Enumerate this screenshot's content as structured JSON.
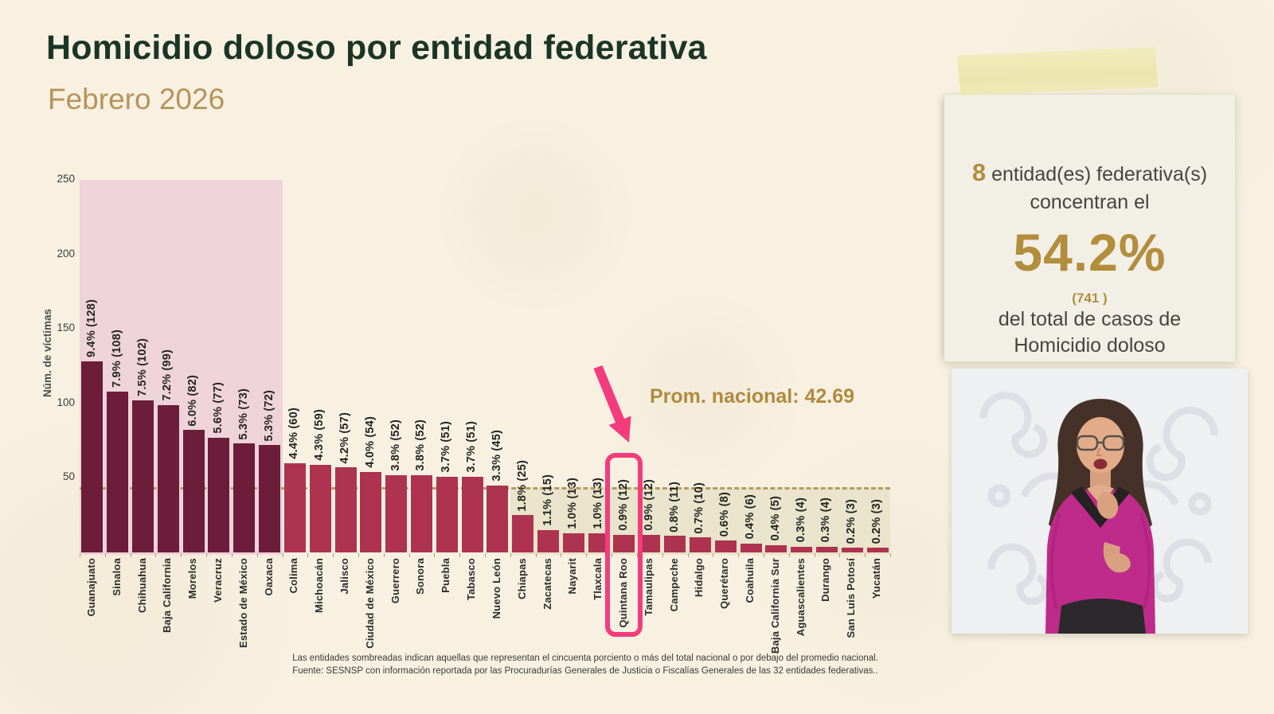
{
  "slide": {
    "title": "Homicidio doloso por entidad federativa",
    "subtitle": "Febrero 2026"
  },
  "chart_data": {
    "type": "bar",
    "title": "Homicidio doloso por entidad federativa — Febrero 2026",
    "xlabel": "",
    "ylabel": "Núm. de víctimas",
    "ylim": [
      0,
      250
    ],
    "yticks": [
      50,
      100,
      150,
      200,
      250
    ],
    "grid": false,
    "legend_position": "none",
    "categories": [
      "Guanajuato",
      "Sinaloa",
      "Chihuahua",
      "Baja California",
      "Morelos",
      "Veracruz",
      "Estado de México",
      "Oaxaca",
      "Colima",
      "Michoacán",
      "Jalisco",
      "Ciudad de México",
      "Guerrero",
      "Sonora",
      "Puebla",
      "Tabasco",
      "Nuevo León",
      "Chiapas",
      "Zacatecas",
      "Nayarit",
      "Tlaxcala",
      "Quintana Roo",
      "Tamaulipas",
      "Campeche",
      "Hidalgo",
      "Querétaro",
      "Coahuila",
      "Baja California Sur",
      "Aguascalientes",
      "Durango",
      "San Luis Potosí",
      "Yucatán"
    ],
    "values": [
      128,
      108,
      102,
      99,
      82,
      77,
      73,
      72,
      60,
      59,
      57,
      54,
      52,
      52,
      51,
      51,
      45,
      25,
      15,
      13,
      13,
      12,
      12,
      11,
      10,
      8,
      6,
      5,
      4,
      4,
      3,
      3
    ],
    "percents": [
      "9.4",
      "7.9",
      "7.5",
      "7.2",
      "6.0",
      "5.6",
      "5.3",
      "5.3",
      "4.4",
      "4.3",
      "4.2",
      "4.0",
      "3.8",
      "3.8",
      "3.7",
      "3.7",
      "3.3",
      "1.8",
      "1.1",
      "1.0",
      "1.0",
      "0.9",
      "0.9",
      "0.8",
      "0.7",
      "0.6",
      "0.4",
      "0.4",
      "0.3",
      "0.3",
      "0.2",
      "0.2"
    ],
    "top_group_count": 8,
    "below_average_start_index": 17,
    "highlight_index": 21,
    "highlight_state": "Quintana Roo",
    "national_average": 42.69,
    "national_average_label": "Prom. nacional: 42.69",
    "colors": {
      "bar_top_group": "#6b1d3a",
      "bar_other": "#ad3350",
      "shade_top_group": "#eed3da",
      "shade_below_average": "#e9e4cb",
      "average_line": "#b59b5e",
      "highlight": "#f33c7d"
    }
  },
  "note_card": {
    "count": "8",
    "line1_rest": " entidad(es) federativa(s)",
    "line2": "concentran el",
    "big_percent": "54.2%",
    "cases": "(741 )",
    "line3": "del total de casos de",
    "line4": "Homicidio doloso"
  },
  "footnote": {
    "line1": "Las entidades sombreadas indican aquellas que representan el cincuenta porciento o más del total nacional o por debajo del promedio nacional.",
    "line2": "Fuente: SESNSP con información reportada por las Procuradurías Generales de Justicia o Fiscalías Generales de las 32 entidades federativas.."
  },
  "video": {
    "description": "Intérprete de lengua de señas"
  }
}
